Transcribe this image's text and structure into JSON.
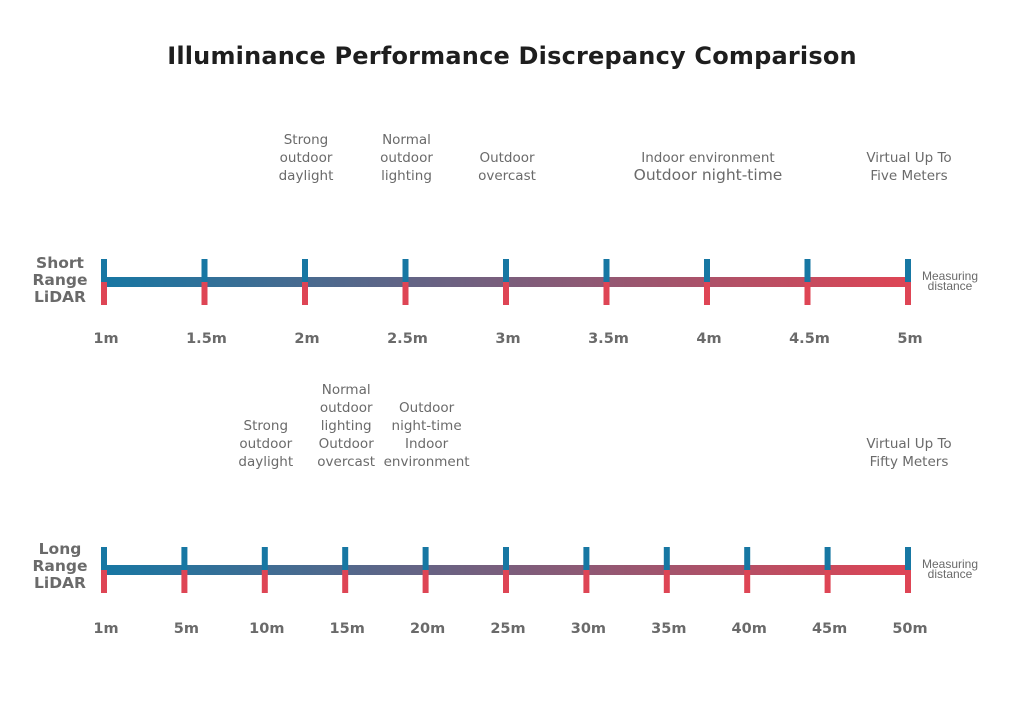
{
  "title": "Illuminance Performance Discrepancy Comparison",
  "colors": {
    "start": "#1777a3",
    "end": "#de4555",
    "text": "#6a6a6a",
    "title": "#1e1e1e"
  },
  "rows": [
    {
      "id": "short",
      "label_lines": [
        "Short",
        "Range",
        "LiDAR"
      ],
      "ticks": [
        "1m",
        "1.5m",
        "2m",
        "2.5m",
        "3m",
        "3.5m",
        "4m",
        "4.5m",
        "5m"
      ],
      "measure_lines": [
        "Measuring",
        "distance"
      ],
      "annotations": [
        {
          "tick_index": 2,
          "lines": [
            "Strong",
            "outdoor",
            "daylight"
          ]
        },
        {
          "tick_index": 3,
          "lines": [
            "Normal",
            "outdoor",
            "lighting"
          ]
        },
        {
          "tick_index": 4,
          "lines": [
            "Outdoor",
            "overcast"
          ]
        },
        {
          "tick_index": 6,
          "lines": [
            "Indoor environment",
            "Outdoor night-time"
          ],
          "emphasis_line": 1
        },
        {
          "tick_index": 8,
          "lines": [
            "Virtual Up To",
            "Five Meters"
          ]
        }
      ]
    },
    {
      "id": "long",
      "label_lines": [
        "Long",
        "Range",
        "LiDAR"
      ],
      "ticks": [
        "1m",
        "5m",
        "10m",
        "15m",
        "20m",
        "25m",
        "30m",
        "35m",
        "40m",
        "45m",
        "50m"
      ],
      "measure_lines": [
        "Measuring",
        "distance"
      ],
      "annotations": [
        {
          "tick_index": 2,
          "lines": [
            "Strong",
            "outdoor",
            "daylight"
          ]
        },
        {
          "tick_index": 3,
          "lines": [
            "Normal",
            "outdoor",
            "lighting",
            "Outdoor",
            "overcast"
          ]
        },
        {
          "tick_index": 4,
          "lines": [
            "Outdoor",
            "night-time",
            "Indoor",
            "environment"
          ]
        },
        {
          "tick_index": 10,
          "lines": [
            "Virtual Up To",
            "Fifty Meters"
          ]
        }
      ]
    }
  ]
}
